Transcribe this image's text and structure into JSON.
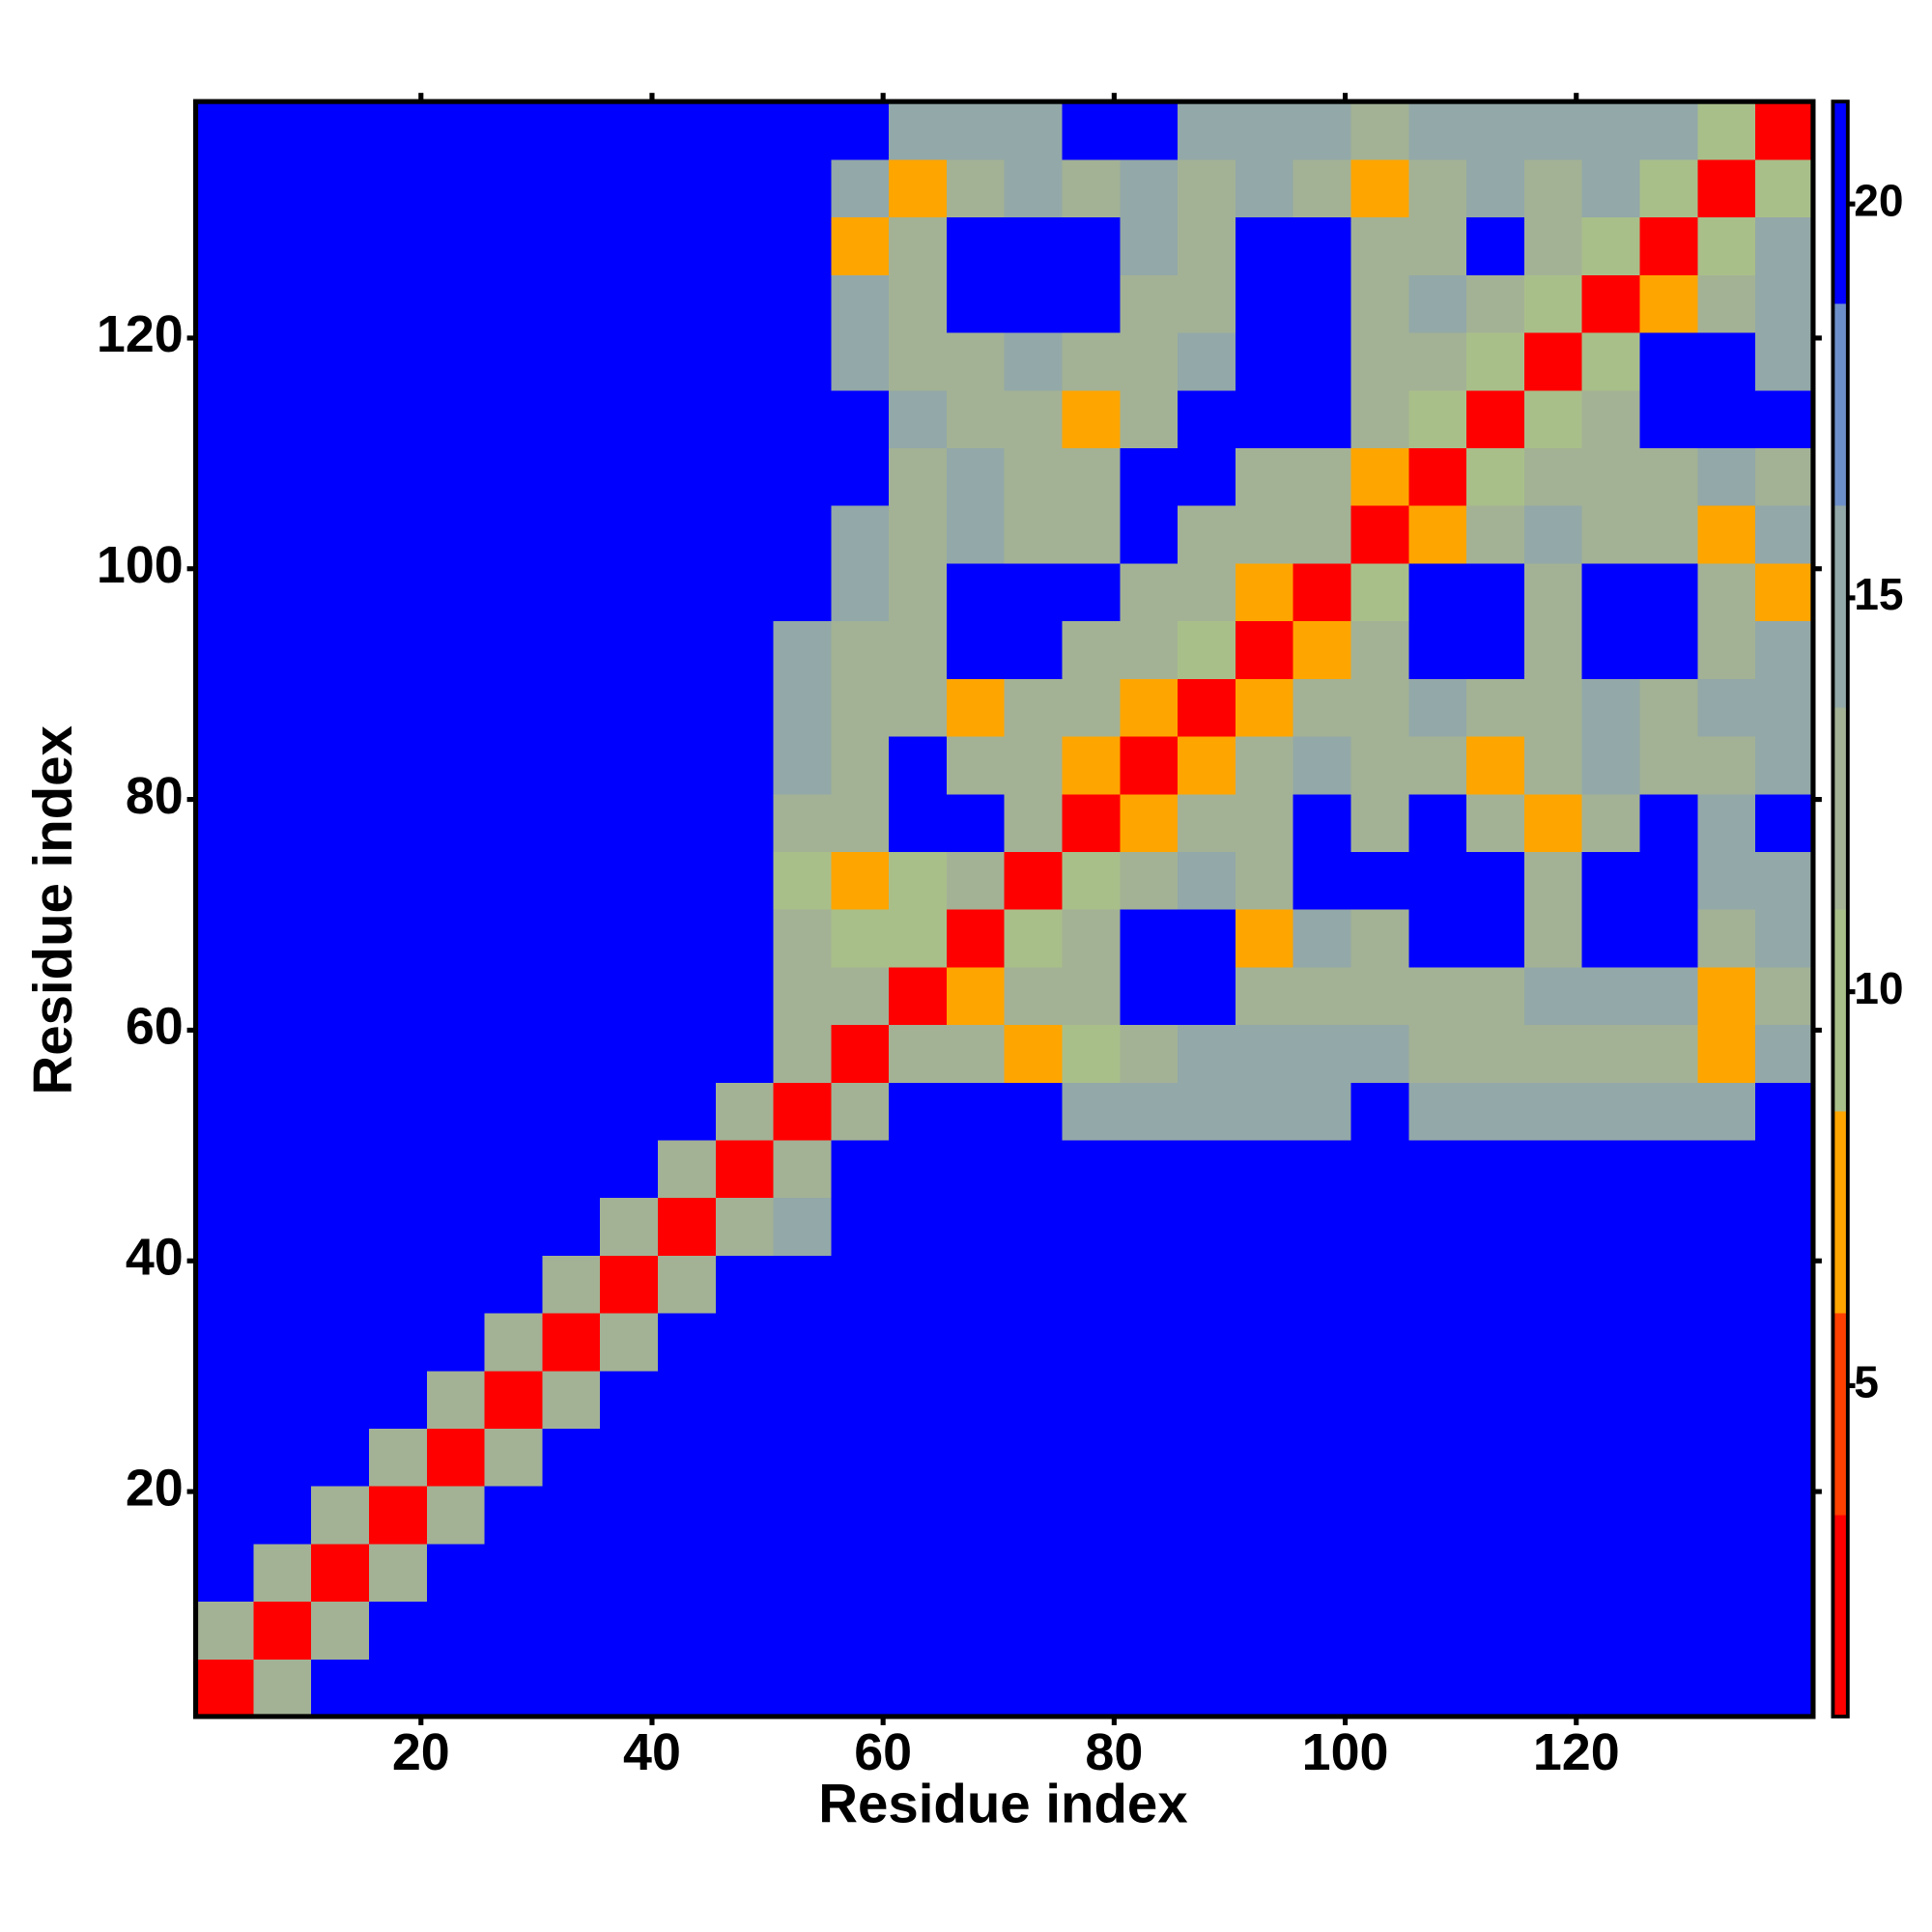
{
  "chart_data": {
    "type": "heatmap",
    "x_label": "Residue index",
    "y_label": "Residue index",
    "x": [
      3,
      8,
      13,
      18,
      23,
      28,
      33,
      38,
      43,
      48,
      53,
      58,
      63,
      68,
      73,
      78,
      83,
      88,
      93,
      98,
      103,
      108,
      113,
      118,
      123,
      128,
      133,
      138
    ],
    "y": [
      3,
      8,
      13,
      18,
      23,
      28,
      33,
      38,
      43,
      48,
      53,
      58,
      63,
      68,
      73,
      78,
      83,
      88,
      93,
      98,
      103,
      108,
      113,
      118,
      123,
      128,
      133,
      138
    ],
    "z": [
      [
        2,
        12,
        21,
        21,
        21,
        21,
        21,
        21,
        21,
        21,
        21,
        21,
        21,
        21,
        21,
        21,
        21,
        21,
        21,
        21,
        21,
        21,
        21,
        21,
        21,
        21,
        21,
        21
      ],
      [
        12,
        2,
        12,
        21,
        21,
        21,
        21,
        21,
        21,
        21,
        21,
        21,
        21,
        21,
        21,
        21,
        21,
        21,
        21,
        21,
        21,
        21,
        21,
        21,
        21,
        21,
        21,
        21
      ],
      [
        21,
        12,
        2,
        12,
        21,
        21,
        21,
        21,
        21,
        21,
        21,
        21,
        21,
        21,
        21,
        21,
        21,
        21,
        21,
        21,
        21,
        21,
        21,
        21,
        21,
        21,
        21,
        21
      ],
      [
        21,
        21,
        12,
        2,
        12,
        21,
        21,
        21,
        21,
        21,
        21,
        21,
        21,
        21,
        21,
        21,
        21,
        21,
        21,
        21,
        21,
        21,
        21,
        21,
        21,
        21,
        21,
        21
      ],
      [
        21,
        21,
        21,
        12,
        2,
        12,
        21,
        21,
        21,
        21,
        21,
        21,
        21,
        21,
        21,
        21,
        21,
        21,
        21,
        21,
        21,
        21,
        21,
        21,
        21,
        21,
        21,
        21
      ],
      [
        21,
        21,
        21,
        21,
        12,
        2,
        12,
        21,
        21,
        21,
        21,
        21,
        21,
        21,
        21,
        21,
        21,
        21,
        21,
        21,
        21,
        21,
        21,
        21,
        21,
        21,
        21,
        21
      ],
      [
        21,
        21,
        21,
        21,
        21,
        12,
        2,
        12,
        21,
        21,
        21,
        21,
        21,
        21,
        21,
        21,
        21,
        21,
        21,
        21,
        21,
        21,
        21,
        21,
        21,
        21,
        21,
        21
      ],
      [
        21,
        21,
        21,
        21,
        21,
        21,
        12,
        2,
        12,
        21,
        21,
        21,
        21,
        21,
        21,
        21,
        21,
        21,
        21,
        21,
        21,
        21,
        21,
        21,
        21,
        21,
        21,
        21
      ],
      [
        21,
        21,
        21,
        21,
        21,
        21,
        21,
        12,
        2,
        12,
        14,
        21,
        21,
        21,
        21,
        21,
        21,
        21,
        21,
        21,
        21,
        21,
        21,
        21,
        21,
        21,
        21,
        21
      ],
      [
        21,
        21,
        21,
        21,
        21,
        21,
        21,
        21,
        12,
        2,
        12,
        21,
        21,
        21,
        21,
        21,
        21,
        21,
        21,
        21,
        21,
        21,
        21,
        21,
        21,
        21,
        21,
        21
      ],
      [
        21,
        21,
        21,
        21,
        21,
        21,
        21,
        21,
        21,
        12,
        2,
        12,
        21,
        21,
        21,
        15,
        15,
        15,
        15,
        15,
        21,
        14,
        14,
        14,
        14,
        14,
        14,
        21
      ],
      [
        21,
        21,
        21,
        21,
        21,
        21,
        21,
        21,
        21,
        21,
        12,
        2,
        12,
        13,
        7,
        10,
        13,
        15,
        14,
        14,
        14,
        13,
        13,
        13,
        13,
        13,
        6,
        14
      ],
      [
        21,
        21,
        21,
        21,
        21,
        21,
        21,
        21,
        21,
        21,
        13,
        12,
        2,
        8,
        13,
        13,
        20,
        20,
        13,
        13,
        13,
        12,
        13,
        14,
        15,
        14,
        7,
        12
      ],
      [
        21,
        21,
        21,
        21,
        21,
        21,
        21,
        21,
        21,
        21,
        13,
        11,
        9,
        2,
        9,
        13,
        20,
        20,
        8,
        14,
        13,
        20,
        20,
        13,
        20,
        20,
        13,
        14
      ],
      [
        21,
        21,
        21,
        21,
        21,
        21,
        21,
        21,
        21,
        21,
        9,
        7,
        10,
        12,
        2,
        10,
        13,
        14,
        13,
        20,
        20,
        20,
        20,
        13,
        20,
        20,
        14,
        14
      ],
      [
        21,
        21,
        21,
        21,
        21,
        21,
        21,
        21,
        21,
        21,
        13,
        13,
        20,
        20,
        12,
        2,
        8,
        13,
        13,
        20,
        13,
        20,
        12,
        7,
        13,
        20,
        14,
        20
      ],
      [
        21,
        21,
        21,
        21,
        21,
        21,
        21,
        21,
        21,
        21,
        14,
        13,
        20,
        13,
        13,
        8,
        2,
        7,
        13,
        14,
        13,
        13,
        8,
        13,
        14,
        13,
        13,
        14
      ],
      [
        21,
        21,
        21,
        21,
        21,
        21,
        21,
        21,
        21,
        21,
        14,
        13,
        13,
        8,
        13,
        12,
        7,
        2,
        7,
        12,
        13,
        14,
        13,
        13,
        14,
        13,
        14,
        15
      ],
      [
        21,
        21,
        21,
        21,
        21,
        21,
        21,
        21,
        21,
        21,
        15,
        13,
        13,
        20,
        20,
        13,
        13,
        9,
        2,
        8,
        13,
        20,
        20,
        13,
        20,
        20,
        13,
        14
      ],
      [
        21,
        21,
        21,
        21,
        21,
        21,
        21,
        21,
        21,
        21,
        21,
        14,
        13,
        20,
        20,
        20,
        13,
        12,
        8,
        2,
        9,
        20,
        20,
        13,
        20,
        20,
        13,
        8
      ],
      [
        21,
        21,
        21,
        21,
        21,
        21,
        21,
        21,
        21,
        21,
        21,
        15,
        13,
        14,
        13,
        13,
        20,
        13,
        13,
        12,
        2,
        7,
        13,
        14,
        13,
        13,
        8,
        14
      ],
      [
        21,
        21,
        21,
        21,
        21,
        21,
        21,
        21,
        21,
        21,
        21,
        20,
        13,
        14,
        13,
        13,
        20,
        20,
        13,
        13,
        7,
        2,
        9,
        13,
        13,
        13,
        14,
        12
      ],
      [
        21,
        21,
        21,
        21,
        21,
        21,
        21,
        21,
        21,
        21,
        21,
        20,
        14,
        13,
        13,
        8,
        13,
        20,
        20,
        20,
        13,
        10,
        2,
        9,
        13,
        20,
        20,
        20
      ],
      [
        21,
        21,
        21,
        21,
        21,
        21,
        21,
        21,
        21,
        21,
        21,
        15,
        13,
        13,
        14,
        13,
        13,
        14,
        20,
        20,
        13,
        13,
        10,
        2,
        9,
        20,
        20,
        14
      ],
      [
        21,
        21,
        21,
        21,
        21,
        21,
        21,
        21,
        21,
        21,
        21,
        15,
        13,
        20,
        20,
        20,
        13,
        13,
        20,
        20,
        13,
        14,
        13,
        10,
        2,
        8,
        13,
        15
      ],
      [
        21,
        21,
        21,
        21,
        21,
        21,
        21,
        21,
        21,
        21,
        21,
        8,
        13,
        20,
        20,
        20,
        14,
        13,
        20,
        20,
        13,
        13,
        20,
        13,
        9,
        2,
        9,
        14
      ],
      [
        21,
        21,
        21,
        21,
        21,
        21,
        21,
        21,
        21,
        21,
        21,
        14,
        7,
        13,
        14,
        13,
        14,
        13,
        14,
        13,
        8,
        13,
        14,
        13,
        14,
        9,
        2,
        9
      ],
      [
        21,
        21,
        21,
        21,
        21,
        21,
        21,
        21,
        21,
        21,
        21,
        21,
        15,
        14,
        16,
        21,
        21,
        15,
        16,
        14,
        13,
        14,
        16,
        15,
        15,
        15,
        9,
        2
      ]
    ],
    "xlim": [
      0.5,
      140.5
    ],
    "ylim": [
      0.5,
      140.5
    ],
    "xticks": [
      20,
      40,
      60,
      80,
      100,
      120
    ],
    "yticks": [
      20,
      40,
      60,
      80,
      100,
      120
    ],
    "clim": [
      0.8,
      21.3
    ],
    "cticks": [
      5,
      10,
      15,
      20
    ],
    "colors": [
      "#ff0000",
      "#ff4000",
      "#ffa500",
      "#a9bf8a",
      "#a3b295",
      "#93a8a8",
      "#6d8fc9",
      "#0000ff"
    ]
  }
}
